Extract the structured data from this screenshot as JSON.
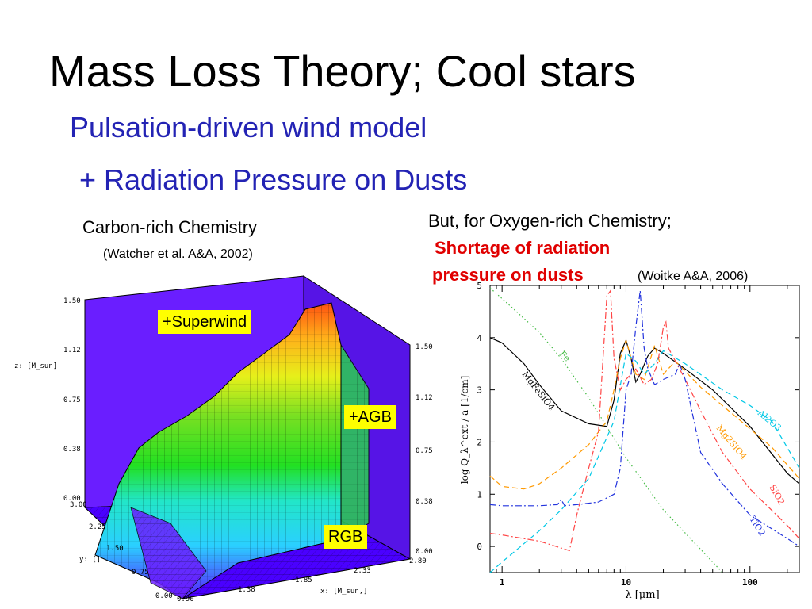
{
  "slide": {
    "title": "Mass Loss Theory; Cool stars",
    "subtitle_1": "Pulsation-driven wind model",
    "subtitle_2": "+ Radiation Pressure on Dusts",
    "left_heading": "Carbon-rich Chemistry",
    "left_citation": "(Watcher et al. A&A, 2002)",
    "right_heading": "But, for Oxygen-rich Chemistry;",
    "right_emphasis_1": "Shortage of radiation",
    "right_emphasis_2": "pressure on dusts",
    "right_citation": "(Woitke A&A, 2006)"
  },
  "colors": {
    "subtitle": "#2323b4",
    "emphasis": "#e00000",
    "tag_bg": "#ffff00",
    "plot_wall": "#6a1eff"
  },
  "surface_plot": {
    "z_axis_label": "z: [M_sun]",
    "y_axis_label": "y: []",
    "x_axis_label": "x: [M_sun,]",
    "z_ticks_left": [
      "1.50",
      "1.12",
      "0.75",
      "0.38",
      "0.00"
    ],
    "z_ticks_right": [
      "1.50",
      "1.12",
      "0.75",
      "0.38",
      "0.00"
    ],
    "y_ticks": [
      "3.00",
      "2.25",
      "1.50",
      "0.75",
      "0.00"
    ],
    "x_ticks": [
      "0.90",
      "1.38",
      "1.85",
      "2.33",
      "2.80"
    ],
    "tags": {
      "superwind": "+Superwind",
      "agb": "+AGB",
      "rgb": "RGB"
    }
  },
  "chart_data": {
    "type": "line",
    "title": "",
    "xlabel": "λ [μm]",
    "ylabel": "log Q_λ^ext / a [1/cm]",
    "xscale": "log",
    "xlim": [
      0.8,
      250
    ],
    "ylim": [
      -0.5,
      5
    ],
    "x_ticks": [
      1,
      10,
      100
    ],
    "y_ticks": [
      0,
      1,
      2,
      3,
      4,
      5
    ],
    "series": [
      {
        "name": "MgFeSiO4",
        "style": "solid",
        "color": "#000000",
        "x": [
          0.8,
          1,
          1.5,
          2,
          3,
          5,
          7,
          8,
          9,
          10,
          11,
          12,
          13,
          15,
          17,
          20,
          30,
          50,
          100,
          200,
          250
        ],
        "y": [
          4.0,
          3.9,
          3.5,
          3.1,
          2.6,
          2.35,
          2.3,
          2.8,
          3.7,
          3.95,
          3.6,
          3.15,
          3.3,
          3.65,
          3.8,
          3.7,
          3.4,
          3.0,
          2.3,
          1.4,
          1.2
        ]
      },
      {
        "name": "Fe",
        "style": "dotted",
        "color": "#44bb44",
        "x": [
          0.8,
          1,
          2,
          3,
          5,
          10,
          20,
          50,
          60
        ],
        "y": [
          4.95,
          4.75,
          4.1,
          3.6,
          2.85,
          1.7,
          0.7,
          -0.3,
          -0.5
        ]
      },
      {
        "name": "Mg2SiO4",
        "style": "dashed",
        "color": "#ff9900",
        "x": [
          0.8,
          1,
          1.5,
          2,
          3,
          5,
          7,
          8,
          9,
          10,
          12,
          14,
          17,
          20,
          25,
          40,
          80,
          150,
          250
        ],
        "y": [
          1.35,
          1.15,
          1.1,
          1.2,
          1.5,
          1.95,
          2.4,
          3.0,
          3.6,
          3.95,
          3.3,
          3.2,
          3.85,
          3.3,
          3.55,
          3.05,
          2.45,
          1.9,
          1.3
        ]
      },
      {
        "name": "Al2O3",
        "style": "dashed",
        "color": "#00c8e6",
        "x": [
          0.8,
          1,
          2,
          3,
          5,
          8,
          10,
          12,
          14,
          17,
          20,
          30,
          60,
          100,
          150,
          250
        ],
        "y": [
          -0.5,
          -0.3,
          0.3,
          0.7,
          1.3,
          2.4,
          3.7,
          3.55,
          3.3,
          3.5,
          3.75,
          3.5,
          3.0,
          2.7,
          2.4,
          1.5
        ]
      },
      {
        "name": "SiO2",
        "style": "dashdot",
        "color": "#ff4444",
        "x": [
          0.8,
          1,
          2,
          3.5,
          4,
          5,
          6,
          7,
          7.5,
          8,
          8.5,
          9,
          10,
          12,
          14,
          16,
          18,
          20,
          21,
          22,
          25,
          30,
          40,
          60,
          100,
          200,
          250
        ],
        "y": [
          0.25,
          0.22,
          0.1,
          -0.08,
          0.6,
          1.5,
          2.2,
          4.8,
          4.9,
          3.6,
          3.3,
          3.0,
          3.2,
          3.4,
          3.1,
          3.2,
          3.5,
          4.2,
          4.3,
          3.8,
          3.55,
          3.2,
          2.6,
          1.8,
          1.1,
          0.4,
          0.15
        ]
      },
      {
        "name": "TiO2",
        "style": "dashdot",
        "color": "#2233dd",
        "x": [
          0.8,
          1,
          2,
          2.8,
          3,
          3.2,
          4,
          6,
          8,
          9,
          10,
          11,
          12,
          13,
          14,
          15,
          17,
          20,
          25,
          27,
          30,
          40,
          60,
          100,
          200,
          250
        ],
        "y": [
          0.8,
          0.78,
          0.78,
          0.8,
          0.9,
          0.78,
          0.8,
          0.85,
          1.0,
          1.5,
          3.0,
          3.3,
          4.2,
          4.9,
          3.8,
          3.4,
          3.1,
          3.2,
          3.3,
          3.5,
          3.2,
          1.8,
          1.2,
          0.6,
          0.15,
          0.0
        ]
      }
    ]
  }
}
